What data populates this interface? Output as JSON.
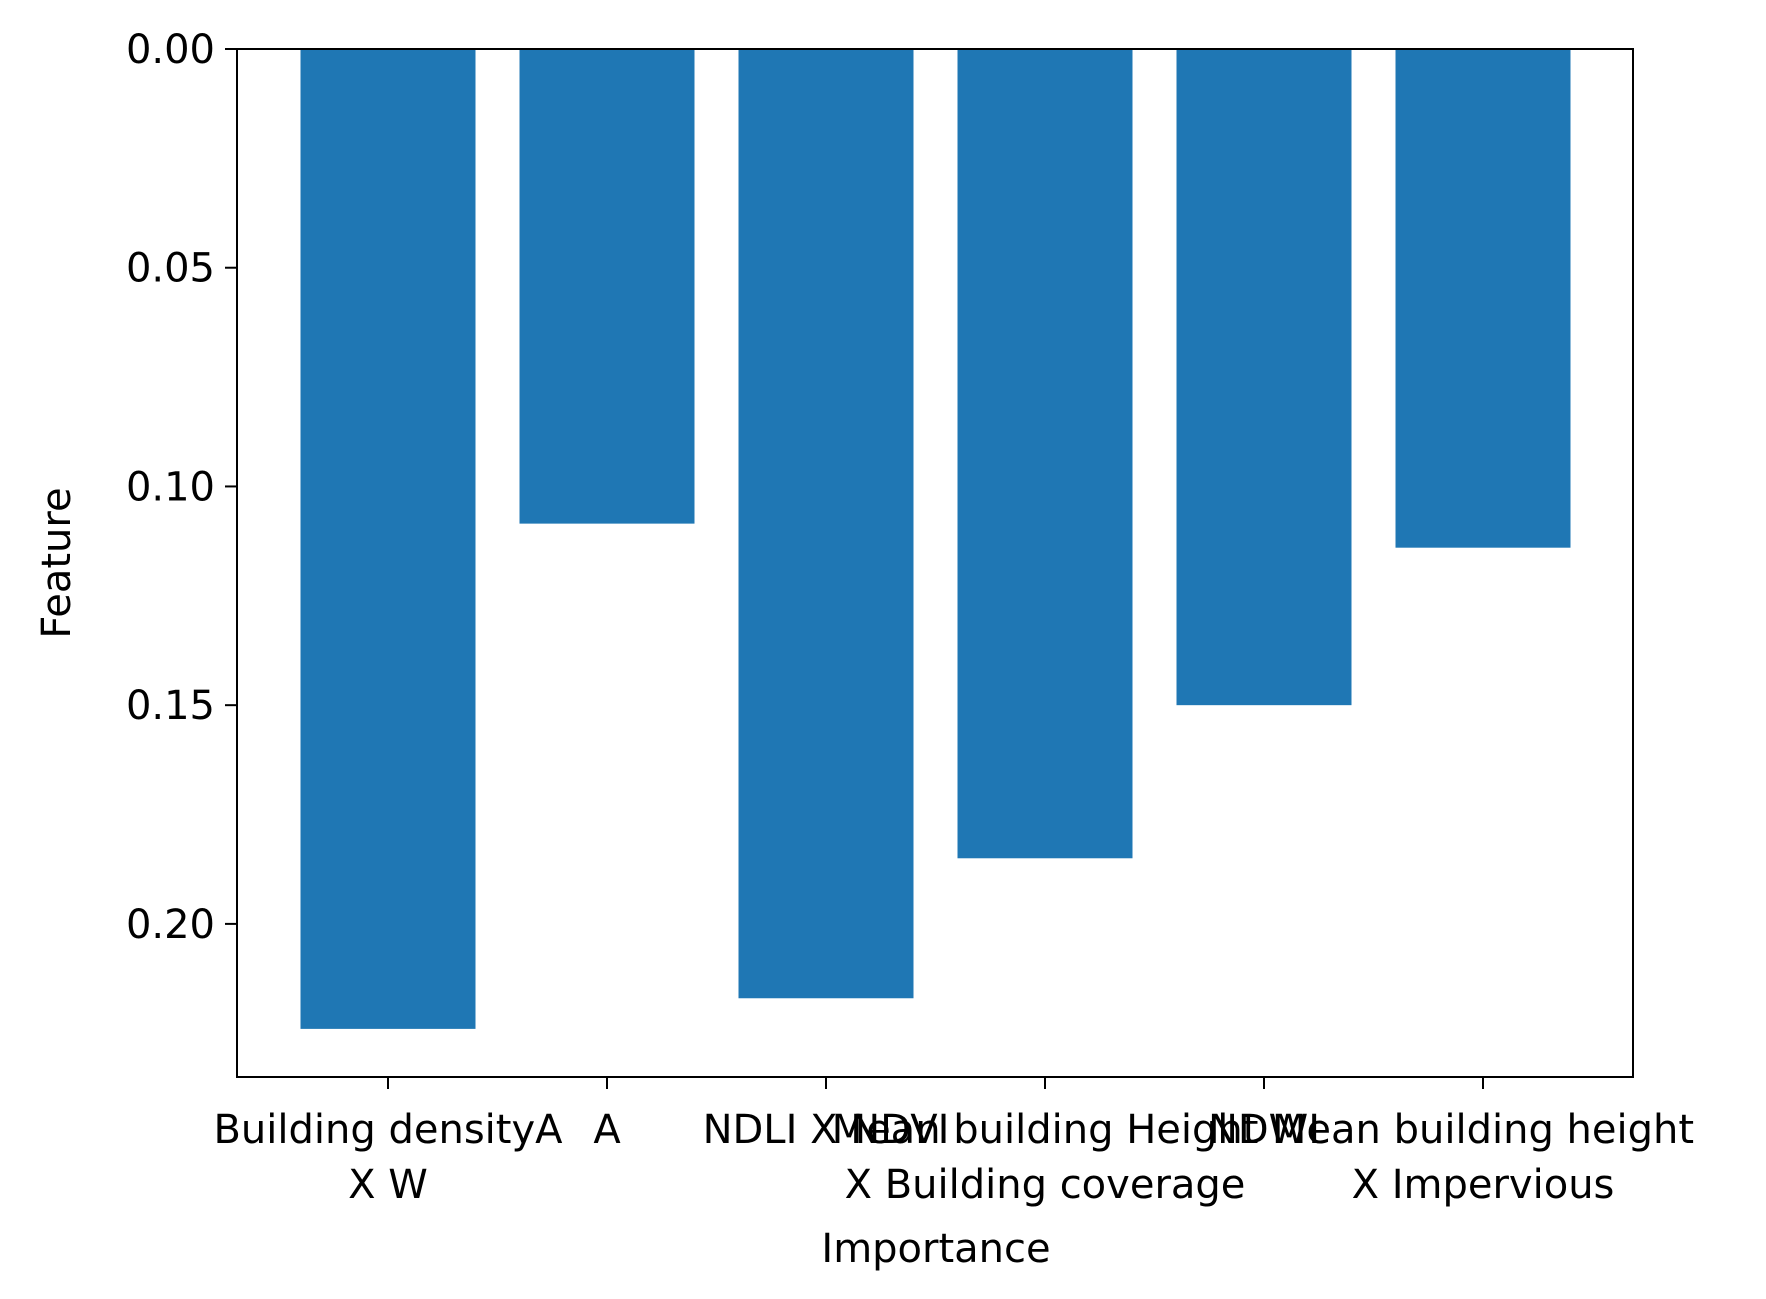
{
  "chart_data": {
    "type": "bar",
    "orientation": "vertical",
    "y_inverted": true,
    "categories": [
      [
        "Building densityA",
        "X W"
      ],
      [
        "NDLI X NDVI"
      ],
      [
        "Mean building Height",
        "X Building coverage"
      ],
      [
        "NDWI"
      ],
      [
        "Mean building height",
        "X Impervious"
      ],
      [
        "A"
      ]
    ],
    "category_order": [
      0,
      5,
      1,
      2,
      3,
      4
    ],
    "series": [
      {
        "values": [
          0.224,
          0.1085,
          0.217,
          0.185,
          0.15,
          0.114
        ]
      }
    ],
    "bar_color": "#1f77b4",
    "xlabel": "Importance",
    "ylabel": "Feature",
    "ylim": [
      0,
      0.235
    ],
    "yticks": [
      0.0,
      0.05,
      0.1,
      0.15,
      0.2
    ],
    "ytick_labels": [
      "0.00",
      "0.05",
      "0.10",
      "0.15",
      "0.20"
    ],
    "grid": false,
    "legend": "none"
  }
}
